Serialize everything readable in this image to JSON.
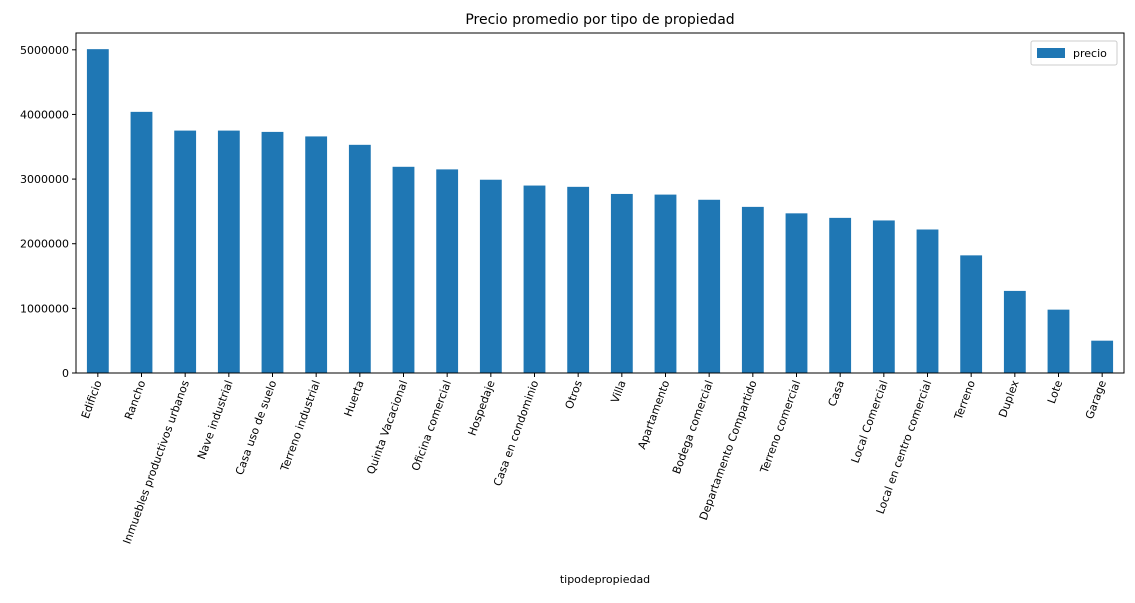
{
  "chart_data": {
    "type": "bar",
    "title": "Precio promedio por tipo de propiedad",
    "xlabel": "tipodepropiedad",
    "ylabel": "",
    "categories": [
      "Edificio",
      "Rancho",
      "Inmuebles productivos urbanos",
      "Nave industrial",
      "Casa uso de suelo",
      "Terreno industrial",
      "Huerta",
      "Quinta Vacacional",
      "Oficina comercial",
      "Hospedaje",
      "Casa en condominio",
      "Otros",
      "Villa",
      "Apartamento",
      "Bodega comercial",
      "Departamento Compartido",
      "Terreno comercial",
      "Casa",
      "Local Comercial",
      "Local en centro comercial",
      "Terreno",
      "Duplex",
      "Lote",
      "Garage"
    ],
    "series": [
      {
        "name": "precio",
        "color": "#1f77b4",
        "values": [
          5010000,
          4040000,
          3750000,
          3750000,
          3730000,
          3660000,
          3530000,
          3190000,
          3150000,
          2990000,
          2900000,
          2880000,
          2770000,
          2760000,
          2680000,
          2570000,
          2470000,
          2400000,
          2360000,
          2220000,
          1820000,
          1270000,
          980000,
          500000
        ]
      }
    ],
    "yticks": [
      0,
      1000000,
      2000000,
      3000000,
      4000000,
      5000000
    ],
    "ylim": [
      0,
      5260000
    ],
    "grid": false,
    "legend": "top-right"
  }
}
